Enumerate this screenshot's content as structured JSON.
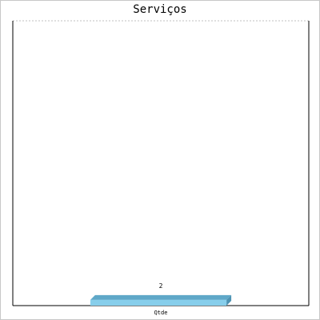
{
  "chart_data": {
    "type": "bar",
    "title": "Serviços",
    "categories": [
      "Qtde"
    ],
    "values": [
      2
    ],
    "data_labels": [
      "2"
    ],
    "ylim": [
      0,
      100
    ],
    "grid": true,
    "colors": {
      "bar_front": "#87ceeb",
      "bar_top": "#5fa8c8",
      "bar_side": "#4d93b3",
      "grid": "#c0c0c0",
      "axis": "#000000"
    }
  }
}
